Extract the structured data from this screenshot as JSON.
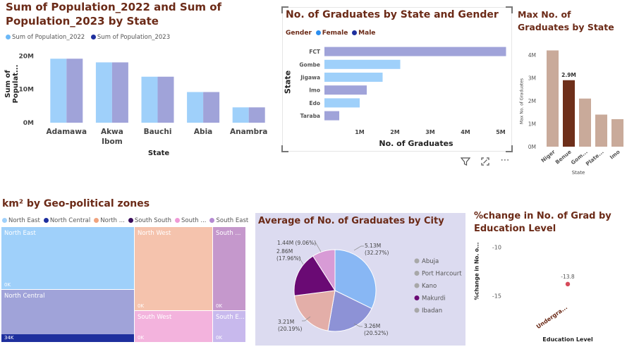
{
  "visual1": {
    "title": "Sum of Population_2022 and Sum of Population_2023 by State",
    "legend": [
      "Sum of Population_2022",
      "Sum of Population_2023"
    ],
    "ylabel": "Sum of Populat...",
    "xlabel": "State",
    "yticks": [
      "20M",
      "10M",
      "0M"
    ],
    "colors": [
      "#9fd0fa",
      "#a0a3d9"
    ]
  },
  "visual2": {
    "title": "No. of Graduates by State and Gender",
    "legend_title": "Gender",
    "legend": [
      "Female",
      "Male"
    ],
    "ylabel": "State",
    "xlabel": "No. of Graduates",
    "xticks": [
      "1M",
      "2M",
      "3M",
      "4M",
      "5M"
    ]
  },
  "visual3": {
    "title": "Max No. of Graduates by State",
    "ylabel": "Max No. of Graduates",
    "xlabel": "State",
    "yticks": [
      "4M",
      "3M",
      "2M",
      "1M",
      "0M"
    ],
    "data_label": "2.9M"
  },
  "visual4": {
    "title": "km² by Geo-political zones",
    "legend": [
      "North East",
      "North Central",
      "North ...",
      "South South",
      "South ...",
      "South East"
    ],
    "legend_colors": [
      "#9fd0fa",
      "#1e2f9e",
      "#f0a37e",
      "#3a0d5a",
      "#ef9ad6",
      "#b58ad2"
    ]
  },
  "visual5": {
    "title": "Average of No. of Graduates by City",
    "legend": [
      "Abuja",
      "Port Harcourt",
      "Kano",
      "Makurdi",
      "Ibadan"
    ],
    "labels": [
      "5.13M (32.27%)",
      "3.26M (20.52%)",
      "3.21M (20.19%)",
      "2.86M (17.96%)",
      "1.44M (9.06%)"
    ]
  },
  "visual6": {
    "title": "%change in No. of Grad by Education Level",
    "ylabel": "%change in No. o...",
    "xlabel": "Education Level",
    "yticks": [
      "-10",
      "-15"
    ],
    "data_label": "-13.8",
    "category": "Undergra..."
  },
  "chart_data": [
    {
      "type": "bar",
      "categories": [
        "Adamawa",
        "Akwa Ibom",
        "Bauchi",
        "Abia",
        "Anambra"
      ],
      "series": [
        {
          "name": "Sum of Population_2022",
          "values": [
            19.2,
            18.1,
            13.8,
            9.2,
            4.6
          ]
        },
        {
          "name": "Sum of Population_2023",
          "values": [
            19.2,
            18.1,
            13.8,
            9.2,
            4.6
          ]
        }
      ],
      "ylim": [
        0,
        22
      ]
    },
    {
      "type": "bar",
      "orientation": "horizontal",
      "categories": [
        "FCT",
        "Gombe",
        "Jigawa",
        "Imo",
        "Edo",
        "Taraba"
      ],
      "values": [
        5.15,
        2.15,
        1.65,
        1.2,
        1.0,
        0.42
      ],
      "gender": [
        "Male",
        "Female",
        "Female",
        "Male",
        "Female",
        "Male"
      ],
      "colors": {
        "Female": "#9fd0fa",
        "Male": "#a0a3d9"
      },
      "xlim": [
        0,
        5.2
      ]
    },
    {
      "type": "bar",
      "categories": [
        "Niger",
        "Benue",
        "Gom...",
        "Plate...",
        "Imo"
      ],
      "values": [
        4.2,
        2.9,
        2.1,
        1.4,
        1.2
      ],
      "highlight": "Benue",
      "colors": {
        "normal": "#c9aa9a",
        "highlight": "#6e2f1a"
      },
      "ylim": [
        0,
        4.4
      ]
    },
    {
      "type": "treemap",
      "items": [
        {
          "name": "North East",
          "value": "0K",
          "color": "#9fd0fa"
        },
        {
          "name": "North Central",
          "value": "34K",
          "color": "#a0a3d9"
        },
        {
          "name": "North West",
          "value": "0K",
          "color": "#f5c3ad"
        },
        {
          "name": "South ...",
          "value": "0K",
          "color": "#c598cc"
        },
        {
          "name": "South West",
          "value": "0K",
          "color": "#f3b3dd"
        },
        {
          "name": "South E...",
          "value": "0K",
          "color": "#c8b9ed"
        }
      ]
    },
    {
      "type": "pie",
      "categories": [
        "Abuja",
        "Port Harcourt",
        "Kano",
        "Makurdi",
        "Ibadan"
      ],
      "values": [
        5.13,
        3.26,
        3.21,
        2.86,
        1.44
      ],
      "percent": [
        32.27,
        20.52,
        20.19,
        17.96,
        9.06
      ],
      "colors": [
        "#88b7f4",
        "#8d92d6",
        "#e3aea8",
        "#6a0a74",
        "#d89bd6"
      ]
    },
    {
      "type": "scatter",
      "categories": [
        "Undergra..."
      ],
      "values": [
        -13.8
      ],
      "ylim": [
        -16.5,
        -8.5
      ]
    }
  ]
}
